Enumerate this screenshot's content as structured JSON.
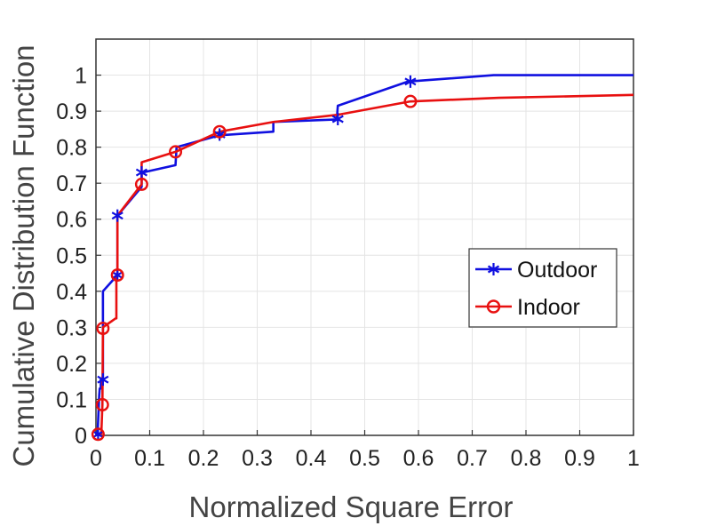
{
  "chart_data": {
    "type": "line",
    "title": "",
    "xlabel": "Normalized Square Error",
    "ylabel": "Cumulative Distribution Function",
    "xlim": [
      0,
      1
    ],
    "ylim": [
      0,
      1.1
    ],
    "xticks": [
      0,
      0.1,
      0.2,
      0.3,
      0.4,
      0.5,
      0.6,
      0.7,
      0.8,
      0.9,
      1
    ],
    "xtick_labels": [
      "0",
      "0.1",
      "0.2",
      "0.3",
      "0.4",
      "0.5",
      "0.6",
      "0.7",
      "0.8",
      "0.9",
      "1"
    ],
    "yticks": [
      0,
      0.1,
      0.2,
      0.3,
      0.4,
      0.5,
      0.6,
      0.7,
      0.8,
      0.9,
      1
    ],
    "ytick_labels": [
      "0",
      "0.1",
      "0.2",
      "0.3",
      "0.4",
      "0.5",
      "0.6",
      "0.7",
      "0.8",
      "0.9",
      "1"
    ],
    "grid": true,
    "legend_position": "right",
    "series": [
      {
        "name": "Outdoor",
        "color": "#1010e0",
        "marker": "asterisk",
        "x": [
          0.001,
          0.003,
          0.006,
          0.007,
          0.009,
          0.009,
          0.011,
          0.013,
          0.013,
          0.037,
          0.038,
          0.04,
          0.04,
          0.085,
          0.085,
          0.088,
          0.148,
          0.15,
          0.23,
          0.33,
          0.33,
          0.448,
          0.45,
          0.58,
          0.74,
          1.0
        ],
        "y": [
          0.0,
          0.003,
          0.11,
          0.13,
          0.13,
          0.155,
          0.155,
          0.155,
          0.4,
          0.44,
          0.445,
          0.445,
          0.61,
          0.69,
          0.73,
          0.73,
          0.75,
          0.8,
          0.833,
          0.843,
          0.87,
          0.877,
          0.915,
          0.982,
          1.0,
          1.0
        ]
      },
      {
        "name": "Indoor",
        "color": "#e81010",
        "marker": "circle",
        "x": [
          0.003,
          0.005,
          0.01,
          0.012,
          0.013,
          0.013,
          0.037,
          0.038,
          0.038,
          0.04,
          0.04,
          0.085,
          0.085,
          0.148,
          0.23,
          0.33,
          0.45,
          0.585,
          0.75,
          1.0
        ],
        "y": [
          0.0,
          0.003,
          0.005,
          0.085,
          0.3,
          0.3,
          0.325,
          0.325,
          0.445,
          0.445,
          0.61,
          0.697,
          0.758,
          0.787,
          0.843,
          0.87,
          0.89,
          0.927,
          0.937,
          0.945
        ]
      }
    ],
    "marker_points": [
      {
        "series": "Outdoor",
        "x": [
          0.004,
          0.013,
          0.04,
          0.04,
          0.085,
          0.23,
          0.45,
          0.585
        ],
        "y": [
          0.003,
          0.155,
          0.445,
          0.61,
          0.73,
          0.835,
          0.878,
          0.982
        ]
      },
      {
        "series": "Indoor",
        "x": [
          0.004,
          0.012,
          0.013,
          0.04,
          0.085,
          0.148,
          0.23,
          0.585
        ],
        "y": [
          0.003,
          0.085,
          0.297,
          0.445,
          0.697,
          0.787,
          0.843,
          0.927
        ]
      }
    ]
  }
}
